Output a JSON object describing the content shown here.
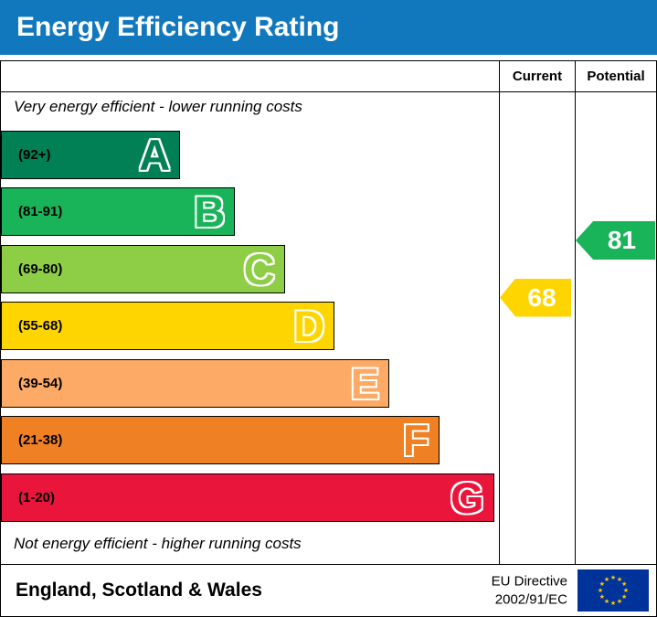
{
  "header": {
    "title": "Energy Efficiency Rating"
  },
  "table": {
    "current_label": "Current",
    "potential_label": "Potential"
  },
  "notes": {
    "top": "Very energy efficient - lower running costs",
    "bottom": "Not energy efficient - higher running costs"
  },
  "footer": {
    "region": "England, Scotland & Wales",
    "directive": [
      "EU Directive",
      "2002/91/EC"
    ],
    "flag_icon": "eu-flag"
  },
  "colors": {
    "header_bg": "#1278be",
    "flag_bg": "#003399",
    "flag_star": "#ffcc00"
  },
  "chart_data": {
    "type": "bar",
    "title": "Energy Efficiency Rating",
    "bands": [
      {
        "letter": "A",
        "label": "(92+)",
        "low": 92,
        "high": 100,
        "color": "#008054",
        "width_pct": 36
      },
      {
        "letter": "B",
        "label": "(81-91)",
        "low": 81,
        "high": 91,
        "color": "#19b459",
        "width_pct": 47
      },
      {
        "letter": "C",
        "label": "(69-80)",
        "low": 69,
        "high": 80,
        "color": "#8dce46",
        "width_pct": 57
      },
      {
        "letter": "D",
        "label": "(55-68)",
        "low": 55,
        "high": 68,
        "color": "#ffd500",
        "width_pct": 67
      },
      {
        "letter": "E",
        "label": "(39-54)",
        "low": 39,
        "high": 54,
        "color": "#fcaa65",
        "width_pct": 78
      },
      {
        "letter": "F",
        "label": "(21-38)",
        "low": 21,
        "high": 38,
        "color": "#ef8023",
        "width_pct": 88
      },
      {
        "letter": "G",
        "label": "(1-20)",
        "low": 1,
        "high": 20,
        "color": "#e9153b",
        "width_pct": 99
      }
    ],
    "current": {
      "value": 68,
      "band": "D",
      "color": "#ffd500"
    },
    "potential": {
      "value": 81,
      "band": "B",
      "color": "#19b459"
    }
  }
}
